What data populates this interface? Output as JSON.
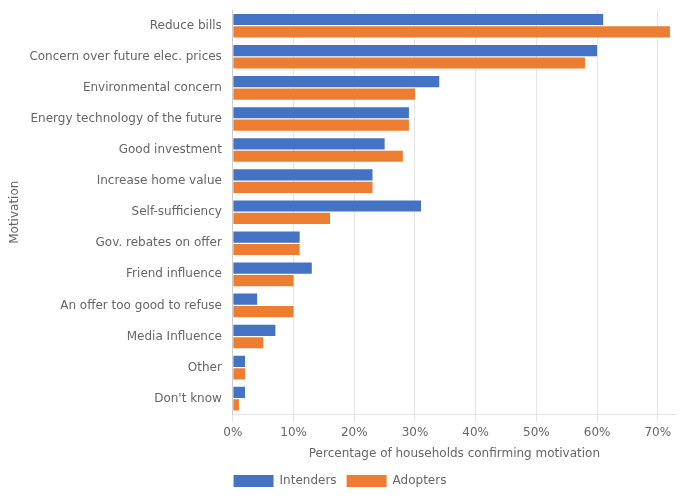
{
  "chart_data": {
    "type": "bar",
    "orientation": "horizontal",
    "categories": [
      "Don't know",
      "Other",
      "Media Influence",
      "An offer too good to refuse",
      "Friend influence",
      "Gov. rebates on offer",
      "Self-sufficiency",
      "Increase home value",
      "Good investment",
      "Energy technology of the future",
      "Environmental concern",
      "Concern over future elec. prices",
      "Reduce bills"
    ],
    "series": [
      {
        "name": "Intenders",
        "color": "#4472C4",
        "values": [
          2,
          2,
          7,
          4,
          13,
          11,
          31,
          23,
          25,
          29,
          34,
          60,
          61
        ]
      },
      {
        "name": "Adopters",
        "color": "#ED7D31",
        "values": [
          1,
          2,
          5,
          10,
          10,
          11,
          16,
          23,
          28,
          29,
          30,
          58,
          72
        ]
      }
    ],
    "xlabel": "Percentage of households confirming motivation",
    "ylabel": "Motivation",
    "xlim": [
      0,
      73
    ],
    "xticks": [
      {
        "value": 0,
        "label": "0%"
      },
      {
        "value": 10,
        "label": "10%"
      },
      {
        "value": 20,
        "label": "20%"
      },
      {
        "value": 30,
        "label": "30%"
      },
      {
        "value": 40,
        "label": "40%"
      },
      {
        "value": 50,
        "label": "50%"
      },
      {
        "value": 60,
        "label": "60%"
      },
      {
        "value": 70,
        "label": "70%"
      }
    ],
    "grid": true,
    "legend": "bottom"
  }
}
